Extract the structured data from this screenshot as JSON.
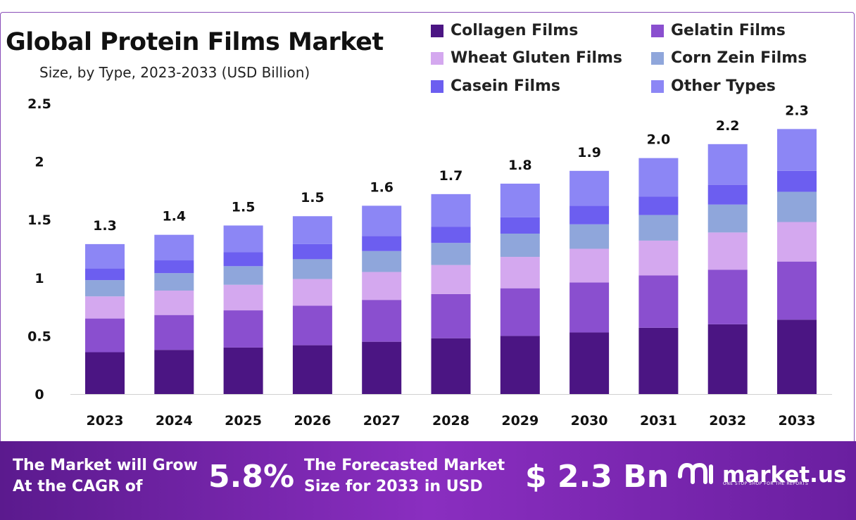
{
  "header": {
    "title": "Global Protein Films Market",
    "subtitle": "Size, by Type, 2023-2033 (USD Billion)"
  },
  "legend": [
    {
      "label": "Collagen Films",
      "color": "#4b1583"
    },
    {
      "label": "Gelatin Films",
      "color": "#8a4fcf"
    },
    {
      "label": "Wheat Gluten Films",
      "color": "#d4a8ef"
    },
    {
      "label": "Corn Zein Films",
      "color": "#8fa6db"
    },
    {
      "label": "Casein Films",
      "color": "#6c5ef0"
    },
    {
      "label": "Other Types",
      "color": "#8c86f5"
    }
  ],
  "chart_data": {
    "type": "bar",
    "stacked": true,
    "categories": [
      "2023",
      "2024",
      "2025",
      "2026",
      "2027",
      "2028",
      "2029",
      "2030",
      "2031",
      "2032",
      "2033"
    ],
    "totals_labels": [
      "1.3",
      "1.4",
      "1.5",
      "1.5",
      "1.6",
      "1.7",
      "1.8",
      "1.9",
      "2.0",
      "2.2",
      "2.3"
    ],
    "y_ticks": [
      "0",
      "0.5",
      "1",
      "1.5",
      "2",
      "2.5"
    ],
    "ylim": [
      0,
      2.5
    ],
    "series": [
      {
        "name": "Collagen Films",
        "values": [
          0.36,
          0.38,
          0.4,
          0.42,
          0.45,
          0.48,
          0.5,
          0.53,
          0.57,
          0.6,
          0.64
        ]
      },
      {
        "name": "Gelatin Films",
        "values": [
          0.29,
          0.3,
          0.32,
          0.34,
          0.36,
          0.38,
          0.41,
          0.43,
          0.45,
          0.47,
          0.5
        ]
      },
      {
        "name": "Wheat Gluten Films",
        "values": [
          0.19,
          0.21,
          0.22,
          0.23,
          0.24,
          0.25,
          0.27,
          0.29,
          0.3,
          0.32,
          0.34
        ]
      },
      {
        "name": "Corn Zein Films",
        "values": [
          0.14,
          0.15,
          0.16,
          0.17,
          0.18,
          0.19,
          0.2,
          0.21,
          0.22,
          0.24,
          0.26
        ]
      },
      {
        "name": "Casein Films",
        "values": [
          0.1,
          0.11,
          0.12,
          0.13,
          0.13,
          0.14,
          0.14,
          0.16,
          0.16,
          0.17,
          0.18
        ]
      },
      {
        "name": "Other Types",
        "values": [
          0.21,
          0.22,
          0.23,
          0.24,
          0.26,
          0.28,
          0.29,
          0.3,
          0.33,
          0.35,
          0.36
        ]
      }
    ]
  },
  "banner": {
    "cagr_text_line1": "The Market will Grow",
    "cagr_text_line2": "At the CAGR of",
    "cagr_value": "5.8%",
    "forecast_text_line1": "The Forecasted Market",
    "forecast_text_line2": "Size for 2033 in USD",
    "forecast_value": "$ 2.3 Bn",
    "brand": "market.us",
    "tagline": "ONE STOP SHOP FOR THE REPORTS"
  }
}
